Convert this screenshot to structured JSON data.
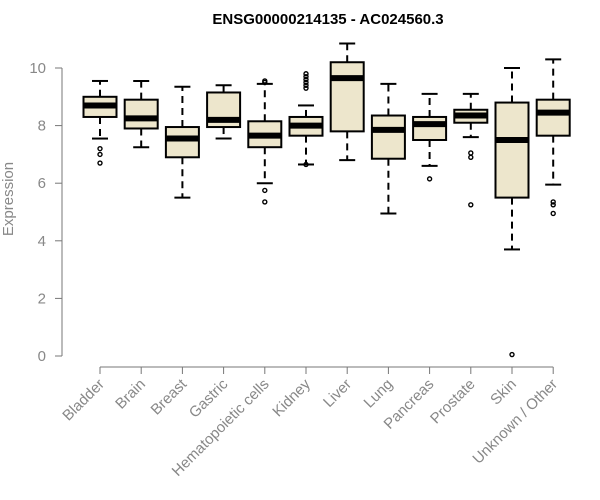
{
  "chart_data": {
    "type": "boxplot",
    "title": "ENSG00000214135 - AC024560.3",
    "ylabel": "Expression",
    "xlabel": "",
    "ylim": [
      0,
      10.8
    ],
    "yticks": [
      0,
      2,
      4,
      6,
      8,
      10
    ],
    "box_fill": "#ede6cc",
    "categories": [
      "Bladder",
      "Brain",
      "Breast",
      "Gastric",
      "Hematopoietic cells",
      "Kidney",
      "Liver",
      "Lung",
      "Pancreas",
      "Prostate",
      "Skin",
      "Unknown / Other"
    ],
    "boxes": [
      {
        "whisker_low": 7.55,
        "q1": 8.3,
        "median": 8.7,
        "q3": 9.0,
        "whisker_high": 9.55,
        "outliers": [
          7.2,
          7.0,
          6.7
        ]
      },
      {
        "whisker_low": 7.25,
        "q1": 7.9,
        "median": 8.25,
        "q3": 8.9,
        "whisker_high": 9.55,
        "outliers": []
      },
      {
        "whisker_low": 5.5,
        "q1": 6.9,
        "median": 7.55,
        "q3": 7.95,
        "whisker_high": 9.35,
        "outliers": []
      },
      {
        "whisker_low": 7.55,
        "q1": 7.95,
        "median": 8.2,
        "q3": 9.15,
        "whisker_high": 9.4,
        "outliers": []
      },
      {
        "whisker_low": 6.0,
        "q1": 7.25,
        "median": 7.65,
        "q3": 8.15,
        "whisker_high": 9.45,
        "outliers": [
          9.55,
          9.5,
          5.75,
          5.35
        ]
      },
      {
        "whisker_low": 6.65,
        "q1": 7.65,
        "median": 8.0,
        "q3": 8.3,
        "whisker_high": 8.7,
        "outliers": [
          9.8,
          9.7,
          9.6,
          9.5,
          9.4,
          9.3,
          6.65
        ]
      },
      {
        "whisker_low": 6.8,
        "q1": 7.8,
        "median": 9.65,
        "q3": 10.2,
        "whisker_high": 10.85,
        "outliers": []
      },
      {
        "whisker_low": 4.95,
        "q1": 6.85,
        "median": 7.85,
        "q3": 8.35,
        "whisker_high": 9.45,
        "outliers": []
      },
      {
        "whisker_low": 6.6,
        "q1": 7.5,
        "median": 8.05,
        "q3": 8.3,
        "whisker_high": 9.1,
        "outliers": [
          6.15
        ]
      },
      {
        "whisker_low": 7.6,
        "q1": 8.1,
        "median": 8.35,
        "q3": 8.55,
        "whisker_high": 9.1,
        "outliers": [
          7.05,
          6.9,
          5.25
        ]
      },
      {
        "whisker_low": 3.7,
        "q1": 5.5,
        "median": 7.5,
        "q3": 8.8,
        "whisker_high": 10.0,
        "outliers": [
          0.05
        ]
      },
      {
        "whisker_low": 5.95,
        "q1": 7.65,
        "median": 8.45,
        "q3": 8.9,
        "whisker_high": 10.3,
        "outliers": [
          5.35,
          5.25,
          4.95
        ]
      }
    ]
  }
}
